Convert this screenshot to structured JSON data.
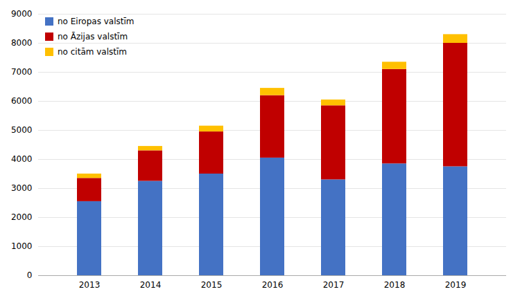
{
  "chart_data": {
    "type": "bar",
    "stacked": true,
    "categories": [
      "2013",
      "2014",
      "2015",
      "2016",
      "2017",
      "2018",
      "2019"
    ],
    "series": [
      {
        "name": "no Eiropas valstīm",
        "color": "#4472C4",
        "values": [
          2550,
          3250,
          3500,
          4050,
          3300,
          3850,
          3750
        ]
      },
      {
        "name": "no Āzijas valstīm",
        "color": "#C00000",
        "values": [
          800,
          1050,
          1450,
          2150,
          2550,
          3250,
          4250
        ]
      },
      {
        "name": "no citām valstīm",
        "color": "#FFC000",
        "values": [
          150,
          150,
          200,
          250,
          200,
          250,
          300
        ]
      }
    ],
    "ylim": [
      0,
      9000
    ],
    "yticks": [
      0,
      1000,
      2000,
      3000,
      4000,
      5000,
      6000,
      7000,
      8000,
      9000
    ],
    "grid": true,
    "legend": "upper left"
  }
}
